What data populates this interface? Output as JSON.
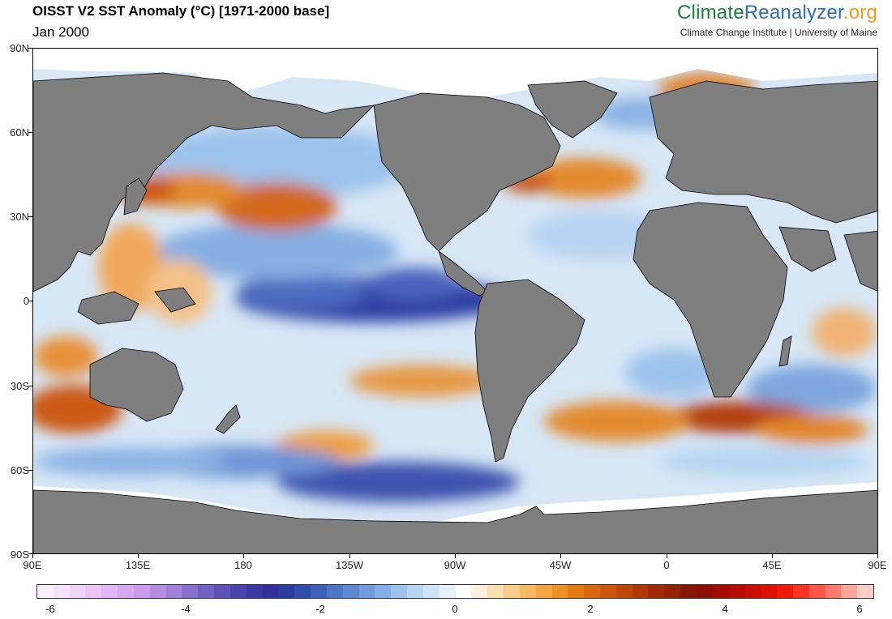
{
  "header": {
    "title": "OISST V2 SST Anomaly (°C) [1971-2000 base]",
    "date": "Jan 2000"
  },
  "brand": {
    "part1": "Climate",
    "part2": "Reanalyzer",
    "part3": ".org",
    "subtitle": "Climate Change Institute | University of Maine"
  },
  "map": {
    "lat_labels": [
      "90N",
      "60N",
      "30N",
      "0",
      "30S",
      "60S",
      "90S"
    ],
    "lon_labels": [
      "90E",
      "135E",
      "180",
      "135W",
      "90W",
      "45W",
      "0",
      "45E",
      "90E"
    ],
    "land_color": "#7f7f7f",
    "sea_ice_color": "#ffffff"
  },
  "colorbar": {
    "labels": [
      "-6",
      "-4",
      "-2",
      "0",
      "2",
      "4",
      "6"
    ],
    "colors": [
      "#fbeffd",
      "#f6e3fb",
      "#f0d5f9",
      "#e9c6f6",
      "#e1b7f3",
      "#d7a8ef",
      "#c99be9",
      "#b58ee2",
      "#a07fd8",
      "#8a70cd",
      "#7361c2",
      "#5c52b7",
      "#4a44ad",
      "#3a38a4",
      "#2f309c",
      "#2a3d9f",
      "#2f4fab",
      "#3b62b8",
      "#4c76c6",
      "#5d89d2",
      "#709cdc",
      "#85b0e5",
      "#9dc3ec",
      "#b6d5f2",
      "#cfe4f7",
      "#e6f1fb",
      "#ffffff",
      "#fdefd9",
      "#fbdfb3",
      "#f8cd8b",
      "#f5ba63",
      "#f2a640",
      "#ec9123",
      "#e37b14",
      "#d8680e",
      "#cc560b",
      "#bf4608",
      "#b13807",
      "#a22b05",
      "#932003",
      "#851602",
      "#8e0b00",
      "#a00a00",
      "#b50b00",
      "#c90d00",
      "#dd1000",
      "#ef1a0a",
      "#fb3424",
      "#fe5747",
      "#fe7c6f",
      "#fea59c",
      "#fecdc7"
    ]
  }
}
